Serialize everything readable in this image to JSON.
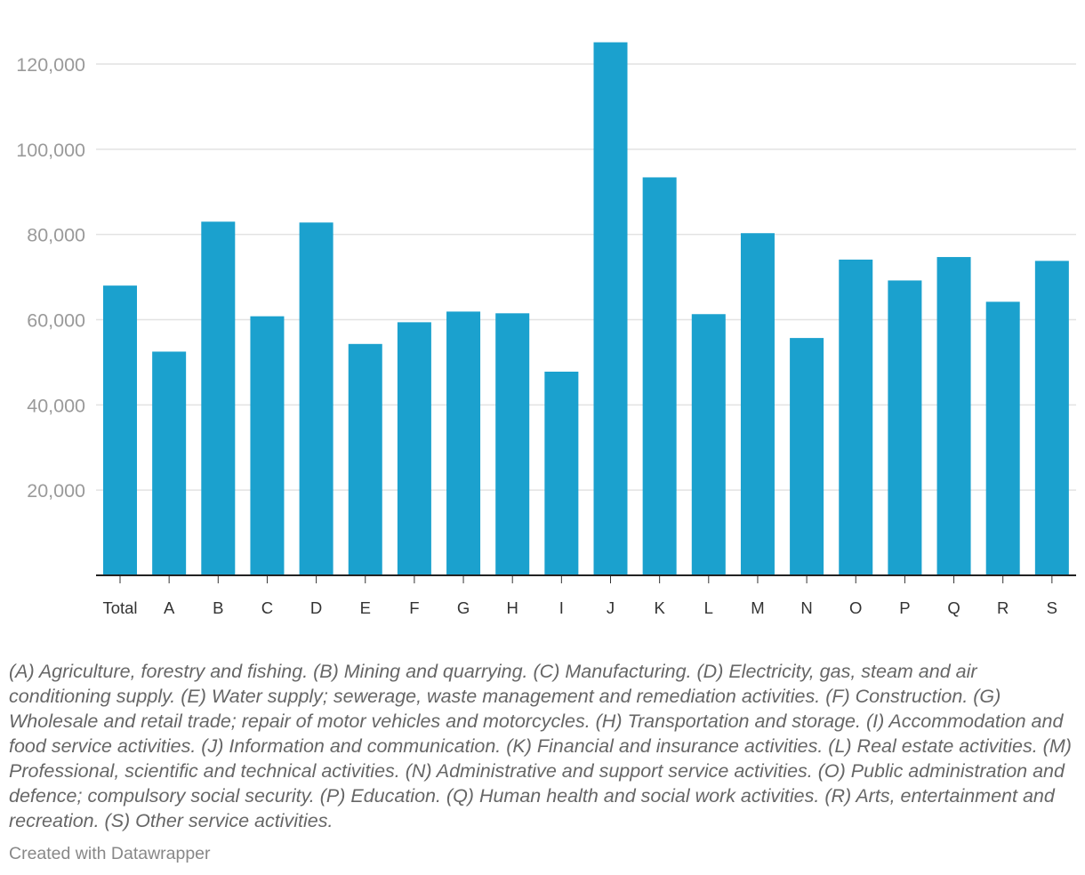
{
  "chart_data": {
    "type": "bar",
    "title": "",
    "xlabel": "",
    "ylabel": "",
    "categories": [
      "Total",
      "A",
      "B",
      "C",
      "D",
      "E",
      "F",
      "G",
      "H",
      "I",
      "J",
      "K",
      "L",
      "M",
      "N",
      "O",
      "P",
      "Q",
      "R",
      "S"
    ],
    "values": [
      68000,
      52500,
      83000,
      60800,
      82800,
      54300,
      59400,
      61900,
      61500,
      47800,
      125100,
      93400,
      61300,
      80300,
      55700,
      74100,
      69200,
      74700,
      64200,
      73800
    ],
    "ylim": [
      0,
      120000
    ],
    "y_ticks": [
      20000,
      40000,
      60000,
      80000,
      100000,
      120000
    ],
    "y_tick_labels": [
      "20,000",
      "40,000",
      "60,000",
      "80,000",
      "100,000",
      "120,000"
    ],
    "grid": true,
    "legend": "none",
    "bar_color": "#1ba1ce"
  },
  "notes": "(A) Agriculture, forestry and fishing. (B) Mining and quarrying. (C) Manufacturing. (D) Electricity, gas, steam and air conditioning supply. (E) Water supply; sewerage, waste management and remediation activities. (F) Construction. (G) Wholesale and retail trade; repair of motor vehicles and motorcycles. (H) Transportation and storage. (I) Accommodation and food service activities. (J) Information and communication. (K) Financial and insurance activities. (L) Real estate activities. (M) Professional, scientific and technical activities. (N) Administrative and support service activities. (O) Public administration and defence; compulsory social security. (P) Education. (Q) Human health and social work activities. (R) Arts, entertainment and recreation. (S) Other service activities.",
  "footer": "Created with Datawrapper"
}
